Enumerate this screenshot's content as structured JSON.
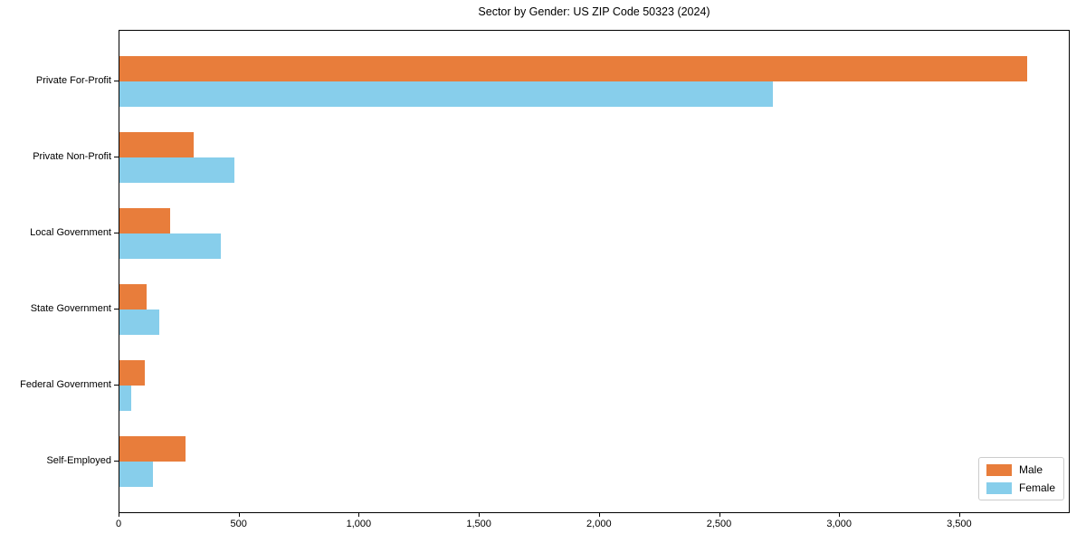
{
  "chart_data": {
    "type": "bar",
    "orientation": "horizontal",
    "title": "Sector by Gender: US ZIP Code 50323 (2024)",
    "categories": [
      "Private For-Profit",
      "Private Non-Profit",
      "Local Government",
      "State Government",
      "Federal Government",
      "Self-Employed"
    ],
    "series": [
      {
        "name": "Male",
        "color": "#E87D3B",
        "values": [
          3780,
          310,
          210,
          113,
          106,
          274
        ]
      },
      {
        "name": "Female",
        "color": "#87CEEB",
        "values": [
          2720,
          480,
          420,
          167,
          48,
          139
        ]
      }
    ],
    "xlabel": "",
    "ylabel": "",
    "xlim": [
      0,
      3960
    ],
    "xticks": [
      0,
      500,
      1000,
      1500,
      2000,
      2500,
      3000,
      3500
    ],
    "xtick_labels": [
      "0",
      "500",
      "1,000",
      "1,500",
      "2,000",
      "2,500",
      "3,000",
      "3,500"
    ],
    "grid": false,
    "legend_position": "lower right"
  }
}
